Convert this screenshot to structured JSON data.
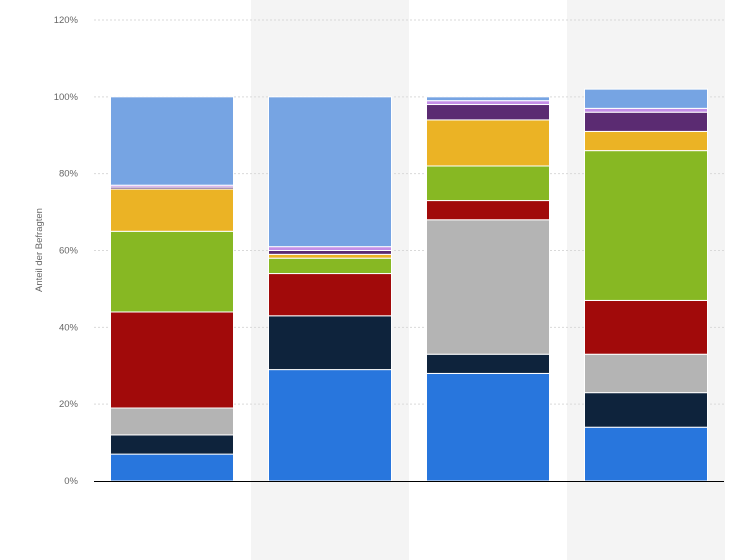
{
  "chart_data": {
    "type": "bar",
    "stacked": true,
    "title": "",
    "xlabel": "",
    "ylabel": "Anteil der Befragten",
    "ylim": [
      0,
      120
    ],
    "y_ticks": [
      0,
      20,
      40,
      60,
      80,
      100,
      120
    ],
    "y_tick_labels": [
      "0%",
      "20%",
      "40%",
      "60%",
      "80%",
      "100%",
      "120%"
    ],
    "grid": true,
    "legend": "none",
    "categories": [
      "",
      "",
      "",
      ""
    ],
    "series": [
      {
        "color": "#2876dd",
        "values": [
          7,
          29,
          28,
          14
        ]
      },
      {
        "color": "#0e233c",
        "values": [
          5,
          14,
          5,
          9
        ]
      },
      {
        "color": "#b4b4b4",
        "values": [
          7,
          0,
          35,
          10
        ]
      },
      {
        "color": "#a10a0a",
        "values": [
          25,
          11,
          5,
          14
        ]
      },
      {
        "color": "#87b823",
        "values": [
          21,
          4,
          9,
          39
        ]
      },
      {
        "color": "#ebb325",
        "values": [
          11,
          1,
          12,
          5
        ]
      },
      {
        "color": "#5b2b72",
        "values": [
          0.5,
          1,
          4,
          5
        ]
      },
      {
        "color": "#c48ee7",
        "values": [
          0.5,
          1,
          1,
          1
        ]
      },
      {
        "color": "#76a4e3",
        "values": [
          23,
          39,
          1,
          5
        ]
      }
    ]
  }
}
